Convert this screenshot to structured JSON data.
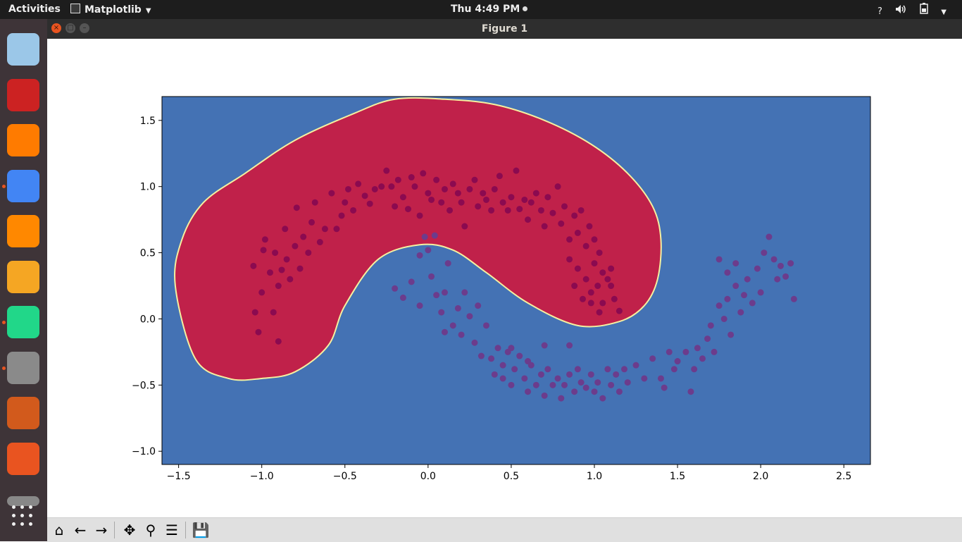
{
  "topbar": {
    "activities": "Activities",
    "app_name": "Matplotlib",
    "clock": "Thu  4:49 PM",
    "tray": {
      "help": "?",
      "volume_icon": "volume-icon",
      "battery_icon": "battery-icon"
    }
  },
  "dock": {
    "items": [
      {
        "name": "cube-app-icon",
        "color": "#9bc7e8",
        "running": false
      },
      {
        "name": "color-blocks-app-icon",
        "color": "#cc2222",
        "running": false
      },
      {
        "name": "firefox-icon",
        "color": "#ff7b00",
        "running": false
      },
      {
        "name": "chrome-icon",
        "color": "#4285f4",
        "running": true
      },
      {
        "name": "vlc-icon",
        "color": "#ff8800",
        "running": false
      },
      {
        "name": "sublime-text-icon",
        "color": "#f5a623",
        "running": false
      },
      {
        "name": "pycharm-icon",
        "color": "#21d789",
        "running": true
      },
      {
        "name": "file-cabinet-icon",
        "color": "#8a8a8a",
        "running": true
      },
      {
        "name": "impress-icon",
        "color": "#d25a1c",
        "running": false
      },
      {
        "name": "software-center-icon",
        "color": "#e95420",
        "running": false
      },
      {
        "name": "scanner-icon",
        "color": "#888888",
        "running": false
      }
    ],
    "show_apps_icon": "grid-icon"
  },
  "window": {
    "title": "Figure 1",
    "controls": [
      "close-icon",
      "maximize-icon",
      "minimize-icon"
    ]
  },
  "chart_data": {
    "type": "scatter",
    "title": "",
    "xlabel": "",
    "ylabel": "",
    "xlim": [
      -1.6,
      2.66
    ],
    "ylim": [
      -1.1,
      1.68
    ],
    "xticks": [
      "−1.5",
      "−1.0",
      "−0.5",
      "0.0",
      "0.5",
      "1.0",
      "1.5",
      "2.0",
      "2.5"
    ],
    "xtick_values": [
      -1.5,
      -1.0,
      -0.5,
      0.0,
      0.5,
      1.0,
      1.5,
      2.0,
      2.5
    ],
    "yticks": [
      "1.5",
      "1.0",
      "0.5",
      "0.0",
      "−0.5",
      "−1.0"
    ],
    "ytick_values": [
      1.5,
      1.0,
      0.5,
      0.0,
      -0.5,
      -1.0
    ],
    "background_region_color": "#4472b4",
    "decision_region_color": "#c0214a",
    "boundary_color": "#f5f0a0",
    "decision_region_outline": [
      [
        -1.52,
        0.25
      ],
      [
        -1.48,
        0.6
      ],
      [
        -1.35,
        0.88
      ],
      [
        -1.1,
        1.1
      ],
      [
        -0.8,
        1.35
      ],
      [
        -0.45,
        1.55
      ],
      [
        -0.2,
        1.66
      ],
      [
        0.1,
        1.66
      ],
      [
        0.4,
        1.62
      ],
      [
        0.7,
        1.5
      ],
      [
        0.98,
        1.32
      ],
      [
        1.2,
        1.1
      ],
      [
        1.35,
        0.85
      ],
      [
        1.4,
        0.6
      ],
      [
        1.38,
        0.3
      ],
      [
        1.3,
        0.1
      ],
      [
        1.15,
        -0.02
      ],
      [
        0.9,
        -0.05
      ],
      [
        0.6,
        0.12
      ],
      [
        0.35,
        0.35
      ],
      [
        0.15,
        0.52
      ],
      [
        -0.05,
        0.56
      ],
      [
        -0.3,
        0.45
      ],
      [
        -0.5,
        0.1
      ],
      [
        -0.6,
        -0.2
      ],
      [
        -0.8,
        -0.4
      ],
      [
        -1.0,
        -0.45
      ],
      [
        -1.2,
        -0.45
      ],
      [
        -1.4,
        -0.3
      ]
    ],
    "series": [
      {
        "color": "#8b0a50",
        "points": [
          [
            -1.05,
            0.4
          ],
          [
            -1.04,
            0.05
          ],
          [
            -1.02,
            -0.1
          ],
          [
            -1.0,
            0.2
          ],
          [
            -0.99,
            0.52
          ],
          [
            -0.98,
            0.6
          ],
          [
            -0.95,
            0.35
          ],
          [
            -0.93,
            0.05
          ],
          [
            -0.92,
            0.5
          ],
          [
            -0.9,
            0.25
          ],
          [
            -0.9,
            -0.17
          ],
          [
            -0.88,
            0.37
          ],
          [
            -0.86,
            0.68
          ],
          [
            -0.85,
            0.45
          ],
          [
            -0.83,
            0.3
          ],
          [
            -0.8,
            0.55
          ],
          [
            -0.79,
            0.84
          ],
          [
            -0.77,
            0.38
          ],
          [
            -0.75,
            0.62
          ],
          [
            -0.72,
            0.5
          ],
          [
            -0.7,
            0.73
          ],
          [
            -0.68,
            0.88
          ],
          [
            -0.65,
            0.58
          ],
          [
            -0.62,
            0.68
          ],
          [
            -0.58,
            0.95
          ],
          [
            -0.55,
            0.68
          ],
          [
            -0.52,
            0.78
          ],
          [
            -0.5,
            0.88
          ],
          [
            -0.48,
            0.98
          ],
          [
            -0.45,
            0.82
          ],
          [
            -0.42,
            1.02
          ],
          [
            -0.38,
            0.93
          ],
          [
            -0.35,
            0.87
          ],
          [
            -0.32,
            0.98
          ],
          [
            -0.28,
            1.0
          ],
          [
            -0.25,
            1.12
          ],
          [
            -0.22,
            1.0
          ],
          [
            -0.2,
            0.85
          ],
          [
            -0.18,
            1.05
          ],
          [
            -0.15,
            0.92
          ],
          [
            -0.12,
            0.83
          ],
          [
            -0.1,
            1.07
          ],
          [
            -0.08,
            1.0
          ],
          [
            -0.05,
            0.78
          ],
          [
            -0.03,
            1.1
          ],
          [
            0.0,
            0.95
          ],
          [
            0.02,
            0.9
          ],
          [
            0.05,
            1.05
          ],
          [
            0.08,
            0.88
          ],
          [
            0.1,
            0.98
          ],
          [
            0.13,
            0.82
          ],
          [
            0.15,
            1.02
          ],
          [
            0.18,
            0.95
          ],
          [
            0.2,
            0.88
          ],
          [
            0.22,
            0.7
          ],
          [
            0.25,
            0.98
          ],
          [
            0.28,
            1.05
          ],
          [
            0.3,
            0.85
          ],
          [
            0.33,
            0.95
          ],
          [
            0.35,
            0.9
          ],
          [
            0.38,
            0.82
          ],
          [
            0.4,
            0.98
          ],
          [
            0.43,
            1.08
          ],
          [
            0.45,
            0.88
          ],
          [
            0.48,
            0.82
          ],
          [
            0.5,
            0.92
          ],
          [
            0.53,
            1.12
          ],
          [
            0.55,
            0.83
          ],
          [
            0.58,
            0.9
          ],
          [
            0.6,
            0.75
          ],
          [
            0.62,
            0.88
          ],
          [
            0.65,
            0.95
          ],
          [
            0.68,
            0.82
          ],
          [
            0.7,
            0.7
          ],
          [
            0.72,
            0.92
          ],
          [
            0.75,
            0.8
          ],
          [
            0.78,
            1.0
          ],
          [
            0.8,
            0.72
          ],
          [
            0.82,
            0.85
          ],
          [
            0.85,
            0.6
          ],
          [
            0.88,
            0.78
          ],
          [
            0.9,
            0.65
          ],
          [
            0.92,
            0.82
          ],
          [
            0.95,
            0.55
          ],
          [
            0.97,
            0.7
          ],
          [
            1.0,
            0.6
          ],
          [
            0.85,
            0.45
          ],
          [
            0.9,
            0.38
          ],
          [
            0.95,
            0.3
          ],
          [
            1.0,
            0.42
          ],
          [
            1.03,
            0.5
          ],
          [
            1.05,
            0.35
          ],
          [
            0.88,
            0.25
          ],
          [
            0.93,
            0.15
          ],
          [
            0.98,
            0.2
          ],
          [
            1.02,
            0.25
          ],
          [
            1.05,
            0.12
          ],
          [
            1.08,
            0.3
          ],
          [
            1.1,
            0.25
          ],
          [
            1.1,
            0.38
          ],
          [
            1.12,
            0.15
          ],
          [
            1.15,
            0.06
          ],
          [
            1.03,
            0.05
          ],
          [
            0.98,
            0.12
          ]
        ]
      },
      {
        "color": "#6c3c8c",
        "points": [
          [
            -0.2,
            0.23
          ],
          [
            -0.15,
            0.16
          ],
          [
            -0.1,
            0.28
          ],
          [
            -0.05,
            0.1
          ],
          [
            0.0,
            0.52
          ],
          [
            -0.05,
            0.48
          ],
          [
            0.02,
            0.32
          ],
          [
            0.05,
            0.18
          ],
          [
            0.08,
            0.05
          ],
          [
            0.1,
            -0.1
          ],
          [
            0.1,
            0.2
          ],
          [
            0.12,
            0.42
          ],
          [
            0.15,
            -0.05
          ],
          [
            0.18,
            0.08
          ],
          [
            0.2,
            -0.12
          ],
          [
            0.22,
            0.2
          ],
          [
            0.25,
            0.02
          ],
          [
            0.28,
            -0.18
          ],
          [
            0.3,
            0.1
          ],
          [
            0.32,
            -0.28
          ],
          [
            0.35,
            -0.05
          ],
          [
            0.38,
            -0.3
          ],
          [
            0.4,
            -0.42
          ],
          [
            0.42,
            -0.22
          ],
          [
            0.45,
            -0.35
          ],
          [
            0.48,
            -0.25
          ],
          [
            0.5,
            -0.5
          ],
          [
            0.52,
            -0.38
          ],
          [
            0.55,
            -0.28
          ],
          [
            0.58,
            -0.45
          ],
          [
            0.6,
            -0.55
          ],
          [
            0.62,
            -0.35
          ],
          [
            0.65,
            -0.5
          ],
          [
            0.68,
            -0.42
          ],
          [
            0.7,
            -0.58
          ],
          [
            0.72,
            -0.38
          ],
          [
            0.75,
            -0.5
          ],
          [
            0.78,
            -0.45
          ],
          [
            0.8,
            -0.6
          ],
          [
            0.82,
            -0.5
          ],
          [
            0.85,
            -0.42
          ],
          [
            0.88,
            -0.55
          ],
          [
            0.9,
            -0.38
          ],
          [
            0.92,
            -0.48
          ],
          [
            0.95,
            -0.52
          ],
          [
            0.98,
            -0.42
          ],
          [
            1.0,
            -0.55
          ],
          [
            1.02,
            -0.48
          ],
          [
            1.05,
            -0.6
          ],
          [
            1.08,
            -0.38
          ],
          [
            1.1,
            -0.5
          ],
          [
            1.13,
            -0.42
          ],
          [
            1.15,
            -0.55
          ],
          [
            1.18,
            -0.38
          ],
          [
            1.2,
            -0.48
          ],
          [
            1.25,
            -0.35
          ],
          [
            1.3,
            -0.45
          ],
          [
            1.35,
            -0.3
          ],
          [
            1.4,
            -0.45
          ],
          [
            1.42,
            -0.52
          ],
          [
            1.45,
            -0.25
          ],
          [
            1.48,
            -0.38
          ],
          [
            1.5,
            -0.32
          ],
          [
            1.55,
            -0.25
          ],
          [
            1.58,
            -0.55
          ],
          [
            1.6,
            -0.38
          ],
          [
            1.62,
            -0.22
          ],
          [
            1.65,
            -0.3
          ],
          [
            1.68,
            -0.15
          ],
          [
            1.7,
            -0.05
          ],
          [
            1.72,
            -0.25
          ],
          [
            1.75,
            0.1
          ],
          [
            1.78,
            0.0
          ],
          [
            1.8,
            0.15
          ],
          [
            1.82,
            -0.12
          ],
          [
            1.85,
            0.25
          ],
          [
            1.88,
            0.05
          ],
          [
            1.9,
            0.18
          ],
          [
            1.92,
            0.3
          ],
          [
            1.95,
            0.12
          ],
          [
            1.98,
            0.38
          ],
          [
            2.0,
            0.2
          ],
          [
            2.02,
            0.5
          ],
          [
            2.05,
            0.62
          ],
          [
            2.08,
            0.45
          ],
          [
            2.1,
            0.3
          ],
          [
            2.12,
            0.4
          ],
          [
            2.15,
            0.32
          ],
          [
            2.18,
            0.42
          ],
          [
            2.2,
            0.15
          ],
          [
            1.75,
            0.45
          ],
          [
            1.8,
            0.35
          ],
          [
            1.85,
            0.42
          ],
          [
            -0.02,
            0.62
          ],
          [
            0.04,
            0.63
          ],
          [
            0.85,
            -0.2
          ],
          [
            0.7,
            -0.2
          ],
          [
            0.6,
            -0.32
          ],
          [
            0.5,
            -0.22
          ],
          [
            0.45,
            -0.45
          ]
        ]
      }
    ]
  },
  "toolbar": {
    "buttons": [
      {
        "name": "home-icon",
        "label": "⌂"
      },
      {
        "name": "back-arrow-icon",
        "label": "←"
      },
      {
        "name": "forward-arrow-icon",
        "label": "→"
      },
      {
        "name": "pan-icon",
        "label": "✥"
      },
      {
        "name": "zoom-icon",
        "label": "⚲"
      },
      {
        "name": "configure-subplots-icon",
        "label": "☰"
      },
      {
        "name": "save-icon",
        "label": "💾"
      }
    ]
  }
}
